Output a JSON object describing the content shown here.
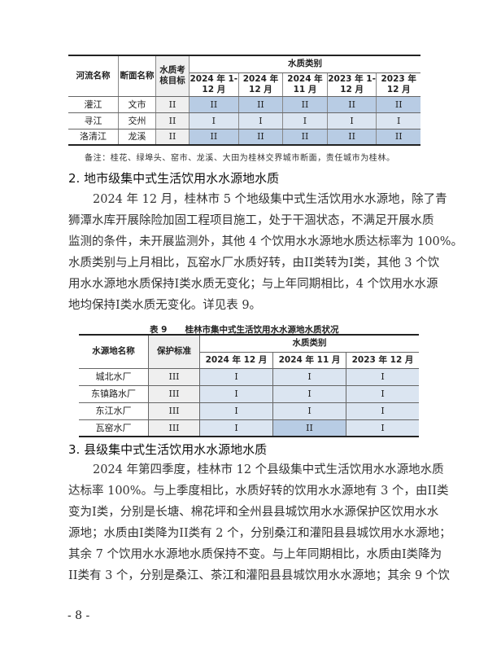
{
  "table1": {
    "headers": {
      "river": "河流名称",
      "section": "断面名称",
      "target": "水质考核目标",
      "group": "水质类别",
      "periods": [
        "2024 年 1-12 月",
        "2024 年 12 月",
        "2024 年 11 月",
        "2023 年 1-12 月",
        "2023 年 12 月"
      ]
    },
    "rows": [
      {
        "river": "灌江",
        "section": "文市",
        "target": "II",
        "values": [
          "II",
          "II",
          "II",
          "II",
          "II"
        ]
      },
      {
        "river": "寻江",
        "section": "交州",
        "target": "II",
        "values": [
          "I",
          "I",
          "I",
          "I",
          "I"
        ]
      },
      {
        "river": "洛清江",
        "section": "龙溪",
        "target": "II",
        "values": [
          "II",
          "II",
          "II",
          "II",
          "II"
        ]
      }
    ],
    "note": "备注：桂花、绿埠头、窑市、龙溪、大田为桂林交界城市断面，责任城市为桂林。"
  },
  "section2": {
    "heading": "2. 地市级集中式生活饮用水水源地水质",
    "lines": [
      "2024 年 12 月，桂林市 5 个地级集中式生活饮用水水源地，除了青",
      "狮潭水库开展除险加固工程项目施工，处于干涸状态，不满足开展水质",
      "监测的条件，未开展监测外，其他 4 个饮用水水源地水质达标率为 100%。",
      "水质类别与上月相比，瓦窑水厂水质好转，由II类转为I类，其他 3 个饮",
      "用水水源地水质保持I类水质无变化；与上年同期相比，4 个饮用水水源",
      "地均保持I类水质无变化。详见表 9。"
    ]
  },
  "table9": {
    "caption_no": "表 9",
    "caption": "桂林市集中式生活饮用水水源地水质状况",
    "headers": {
      "name": "水源地名称",
      "standard": "保护标准",
      "group": "水质类别",
      "periods": [
        "2024 年 12 月",
        "2024 年 11 月",
        "2023 年 12 月"
      ]
    },
    "rows": [
      {
        "name": "城北水厂",
        "standard": "III",
        "values": [
          "I",
          "I",
          "I"
        ]
      },
      {
        "name": "东镇路水厂",
        "standard": "III",
        "values": [
          "I",
          "I",
          "I"
        ]
      },
      {
        "name": "东江水厂",
        "standard": "III",
        "values": [
          "I",
          "I",
          "I"
        ]
      },
      {
        "name": "瓦窑水厂",
        "standard": "III",
        "values": [
          "I",
          "II",
          "I"
        ]
      }
    ]
  },
  "section3": {
    "heading": "3. 县级集中式生活饮用水水源地水质",
    "lines": [
      "2024 年第四季度，桂林市 12 个县级集中式生活饮用水水源地水质",
      "达标率 100%。与上季度相比，水质好转的饮用水水源地有 3 个，由II类",
      "变为I类，分别是长塘、棉花坪和全州县县城饮用水水源保护区饮用水水",
      "源地；水质由I类降为II类有 2 个，分别桑江和灌阳县县城饮用水水源地；",
      "其余 7 个饮用水水源地水质保持不变。与上年同期相比，水质由I类降为",
      "II类有 3 个，分别是桑江、茶江和灌阳县县城饮用水水源地；其余 9 个饮"
    ]
  },
  "page_number": "- 8 -",
  "colors": {
    "class_ii": "#b8cce4",
    "class_i": "#dbe5f1",
    "target_col": "#efefef"
  }
}
